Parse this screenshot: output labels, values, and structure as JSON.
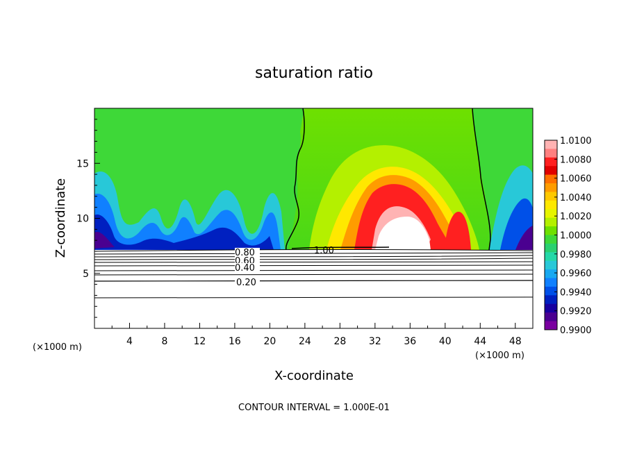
{
  "chart_data": {
    "type": "heatmap",
    "title": "saturation ratio",
    "xlabel": "X-coordinate",
    "ylabel": "Z-coordinate",
    "x_unit": "(×1000 m)",
    "y_unit": "(×1000 m)",
    "xlim": [
      0,
      50
    ],
    "ylim": [
      0,
      20
    ],
    "x_ticks": [
      "4",
      "8",
      "12",
      "16",
      "20",
      "24",
      "28",
      "32",
      "36",
      "40",
      "44",
      "48"
    ],
    "y_ticks": [
      "5",
      "10",
      "15"
    ],
    "colorbar": {
      "labels": [
        "1.0100",
        "1.0080",
        "1.0060",
        "1.0040",
        "1.0020",
        "1.0000",
        "0.9980",
        "0.9960",
        "0.9940",
        "0.9920",
        "0.9900"
      ],
      "colors": [
        "#ffb3b3",
        "#ff8080",
        "#ff2020",
        "#e00000",
        "#ff7000",
        "#ff9c00",
        "#ffc800",
        "#ffe800",
        "#e6f500",
        "#b4f000",
        "#6ee000",
        "#3ed838",
        "#2ad070",
        "#24d8a8",
        "#28c8d8",
        "#18a8f0",
        "#1080ff",
        "#0050e8",
        "#0020c0",
        "#1800a0",
        "#4a0090",
        "#7a00a0"
      ],
      "position": "right"
    },
    "contour_labels": [
      "0.80",
      "0.60",
      "0.40",
      "0.20",
      "1.00"
    ],
    "contour_interval_note": "CONTOUR INTERVAL = 1.000E-01"
  }
}
